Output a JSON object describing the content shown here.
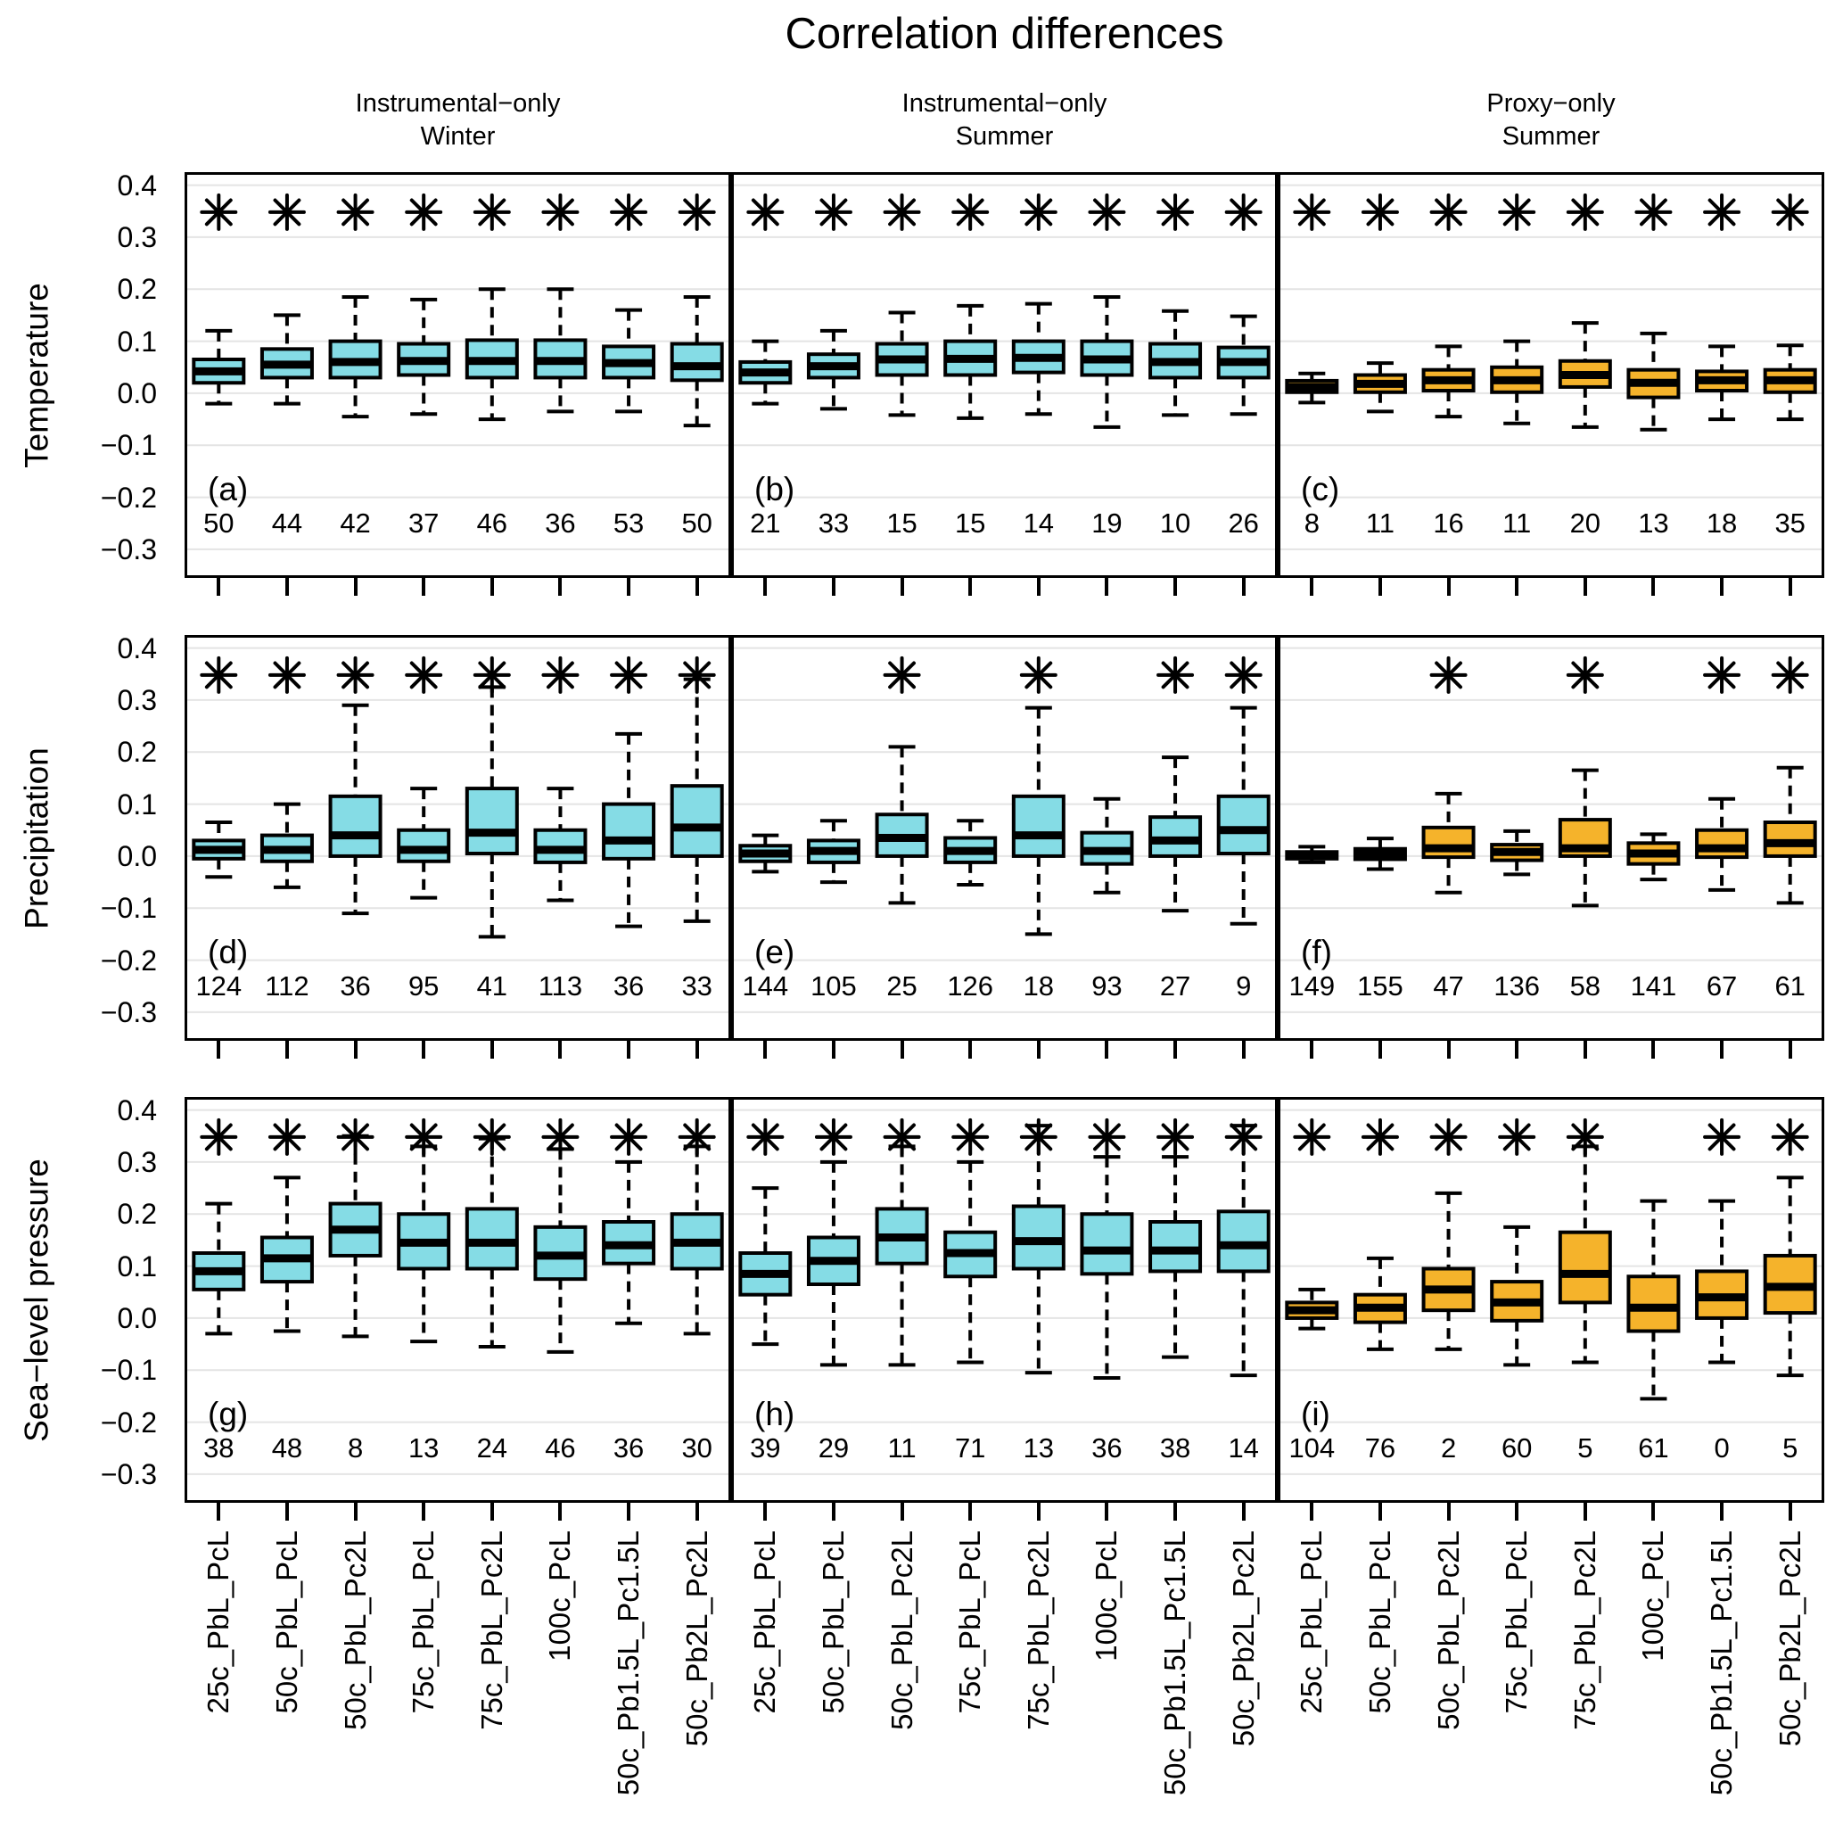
{
  "title": "Correlation differences",
  "column_headers": [
    {
      "line1": "Instrumental−only",
      "line2": "Winter"
    },
    {
      "line1": "Instrumental−only",
      "line2": "Summer"
    },
    {
      "line1": "Proxy−only",
      "line2": "Summer"
    }
  ],
  "row_labels": [
    "Temperature",
    "Precipitation",
    "Sea−level pressure"
  ],
  "x_labels": [
    "25c_PbL_PcL",
    "50c_PbL_PcL",
    "50c_PbL_Pc2L",
    "75c_PbL_PcL",
    "75c_PbL_Pc2L",
    "100c_PcL",
    "50c_Pb1.5L_Pc1.5L",
    "50c_Pb2L_Pc2L"
  ],
  "y_ticks": [
    0.4,
    0.3,
    0.2,
    0.1,
    0.0,
    -0.1,
    -0.2,
    -0.3
  ],
  "colors": {
    "instrumental_fill": "#85DCE5",
    "proxy_fill": "#F5B32B",
    "line": "#000000",
    "gridline": "#E4E4E4",
    "background": "#FFFFFF"
  },
  "chart_data": {
    "type": "boxplot-grid",
    "ylim": [
      -0.355,
      0.425
    ],
    "significance_marker": "8-spoke-asterisk at y=0.35",
    "panels": [
      {
        "letter": "(a)",
        "variable": "Temperature",
        "dataset": "Instrumental-only Winter",
        "group": "instrumental",
        "counts": [
          50,
          44,
          42,
          37,
          46,
          36,
          53,
          50
        ],
        "significant": [
          true,
          true,
          true,
          true,
          true,
          true,
          true,
          true
        ],
        "boxes": [
          {
            "low": -0.02,
            "q1": 0.02,
            "med": 0.042,
            "q3": 0.065,
            "high": 0.12
          },
          {
            "low": -0.02,
            "q1": 0.03,
            "med": 0.055,
            "q3": 0.085,
            "high": 0.15
          },
          {
            "low": -0.045,
            "q1": 0.03,
            "med": 0.06,
            "q3": 0.1,
            "high": 0.185
          },
          {
            "low": -0.04,
            "q1": 0.035,
            "med": 0.062,
            "q3": 0.095,
            "high": 0.18
          },
          {
            "low": -0.05,
            "q1": 0.03,
            "med": 0.062,
            "q3": 0.102,
            "high": 0.2
          },
          {
            "low": -0.035,
            "q1": 0.03,
            "med": 0.062,
            "q3": 0.102,
            "high": 0.2
          },
          {
            "low": -0.035,
            "q1": 0.03,
            "med": 0.058,
            "q3": 0.09,
            "high": 0.16
          },
          {
            "low": -0.062,
            "q1": 0.025,
            "med": 0.052,
            "q3": 0.095,
            "high": 0.185
          }
        ]
      },
      {
        "letter": "(b)",
        "variable": "Temperature",
        "dataset": "Instrumental-only Summer",
        "group": "instrumental",
        "counts": [
          21,
          33,
          15,
          15,
          14,
          19,
          10,
          26
        ],
        "significant": [
          true,
          true,
          true,
          true,
          true,
          true,
          true,
          true
        ],
        "boxes": [
          {
            "low": -0.02,
            "q1": 0.02,
            "med": 0.04,
            "q3": 0.06,
            "high": 0.1
          },
          {
            "low": -0.03,
            "q1": 0.03,
            "med": 0.052,
            "q3": 0.075,
            "high": 0.12
          },
          {
            "low": -0.042,
            "q1": 0.035,
            "med": 0.065,
            "q3": 0.095,
            "high": 0.155
          },
          {
            "low": -0.048,
            "q1": 0.035,
            "med": 0.066,
            "q3": 0.1,
            "high": 0.168
          },
          {
            "low": -0.04,
            "q1": 0.04,
            "med": 0.068,
            "q3": 0.1,
            "high": 0.172
          },
          {
            "low": -0.065,
            "q1": 0.035,
            "med": 0.065,
            "q3": 0.1,
            "high": 0.185
          },
          {
            "low": -0.042,
            "q1": 0.03,
            "med": 0.06,
            "q3": 0.095,
            "high": 0.158
          },
          {
            "low": -0.04,
            "q1": 0.03,
            "med": 0.06,
            "q3": 0.088,
            "high": 0.148
          }
        ]
      },
      {
        "letter": "(c)",
        "variable": "Temperature",
        "dataset": "Proxy-only Summer",
        "group": "proxy",
        "counts": [
          8,
          11,
          16,
          11,
          20,
          13,
          18,
          35
        ],
        "significant": [
          true,
          true,
          true,
          true,
          true,
          true,
          true,
          true
        ],
        "boxes": [
          {
            "low": -0.018,
            "q1": 0.002,
            "med": 0.012,
            "q3": 0.024,
            "high": 0.038
          },
          {
            "low": -0.035,
            "q1": 0.002,
            "med": 0.018,
            "q3": 0.035,
            "high": 0.058
          },
          {
            "low": -0.045,
            "q1": 0.005,
            "med": 0.025,
            "q3": 0.045,
            "high": 0.09
          },
          {
            "low": -0.058,
            "q1": 0.002,
            "med": 0.025,
            "q3": 0.05,
            "high": 0.1
          },
          {
            "low": -0.065,
            "q1": 0.012,
            "med": 0.035,
            "q3": 0.062,
            "high": 0.135
          },
          {
            "low": -0.07,
            "q1": -0.008,
            "med": 0.02,
            "q3": 0.045,
            "high": 0.115
          },
          {
            "low": -0.05,
            "q1": 0.005,
            "med": 0.025,
            "q3": 0.042,
            "high": 0.09
          },
          {
            "low": -0.05,
            "q1": 0.002,
            "med": 0.025,
            "q3": 0.045,
            "high": 0.092
          }
        ]
      },
      {
        "letter": "(d)",
        "variable": "Precipitation",
        "dataset": "Instrumental-only Winter",
        "group": "instrumental",
        "counts": [
          124,
          112,
          36,
          95,
          41,
          113,
          36,
          33
        ],
        "significant": [
          true,
          true,
          true,
          true,
          true,
          true,
          true,
          true
        ],
        "boxes": [
          {
            "low": -0.04,
            "q1": -0.005,
            "med": 0.012,
            "q3": 0.03,
            "high": 0.065
          },
          {
            "low": -0.06,
            "q1": -0.01,
            "med": 0.012,
            "q3": 0.04,
            "high": 0.1
          },
          {
            "low": -0.11,
            "q1": 0.0,
            "med": 0.04,
            "q3": 0.115,
            "high": 0.29
          },
          {
            "low": -0.08,
            "q1": -0.01,
            "med": 0.012,
            "q3": 0.05,
            "high": 0.13
          },
          {
            "low": -0.155,
            "q1": 0.005,
            "med": 0.045,
            "q3": 0.13,
            "high": 0.325
          },
          {
            "low": -0.085,
            "q1": -0.012,
            "med": 0.012,
            "q3": 0.05,
            "high": 0.13
          },
          {
            "low": -0.135,
            "q1": -0.005,
            "med": 0.03,
            "q3": 0.1,
            "high": 0.235
          },
          {
            "low": -0.125,
            "q1": 0.0,
            "med": 0.055,
            "q3": 0.135,
            "high": 0.34
          }
        ]
      },
      {
        "letter": "(e)",
        "variable": "Precipitation",
        "dataset": "Instrumental-only Summer",
        "group": "instrumental",
        "counts": [
          144,
          105,
          25,
          126,
          18,
          93,
          27,
          9
        ],
        "significant": [
          false,
          false,
          true,
          false,
          true,
          false,
          true,
          true
        ],
        "boxes": [
          {
            "low": -0.03,
            "q1": -0.01,
            "med": 0.005,
            "q3": 0.02,
            "high": 0.04
          },
          {
            "low": -0.05,
            "q1": -0.012,
            "med": 0.01,
            "q3": 0.03,
            "high": 0.068
          },
          {
            "low": -0.09,
            "q1": 0.0,
            "med": 0.035,
            "q3": 0.08,
            "high": 0.21
          },
          {
            "low": -0.055,
            "q1": -0.012,
            "med": 0.01,
            "q3": 0.035,
            "high": 0.068
          },
          {
            "low": -0.15,
            "q1": 0.0,
            "med": 0.04,
            "q3": 0.115,
            "high": 0.285
          },
          {
            "low": -0.07,
            "q1": -0.015,
            "med": 0.01,
            "q3": 0.045,
            "high": 0.11
          },
          {
            "low": -0.105,
            "q1": 0.0,
            "med": 0.03,
            "q3": 0.075,
            "high": 0.19
          },
          {
            "low": -0.13,
            "q1": 0.005,
            "med": 0.05,
            "q3": 0.115,
            "high": 0.285
          }
        ]
      },
      {
        "letter": "(f)",
        "variable": "Precipitation",
        "dataset": "Proxy-only Summer",
        "group": "proxy",
        "counts": [
          149,
          155,
          47,
          136,
          58,
          141,
          67,
          61
        ],
        "significant": [
          false,
          false,
          true,
          false,
          true,
          false,
          true,
          true
        ],
        "boxes": [
          {
            "low": -0.012,
            "q1": -0.005,
            "med": 0.0,
            "q3": 0.008,
            "high": 0.018
          },
          {
            "low": -0.025,
            "q1": -0.006,
            "med": 0.004,
            "q3": 0.014,
            "high": 0.034
          },
          {
            "low": -0.07,
            "q1": -0.002,
            "med": 0.015,
            "q3": 0.055,
            "high": 0.12
          },
          {
            "low": -0.035,
            "q1": -0.008,
            "med": 0.008,
            "q3": 0.022,
            "high": 0.048
          },
          {
            "low": -0.095,
            "q1": 0.0,
            "med": 0.015,
            "q3": 0.07,
            "high": 0.165
          },
          {
            "low": -0.045,
            "q1": -0.015,
            "med": 0.005,
            "q3": 0.025,
            "high": 0.042
          },
          {
            "low": -0.065,
            "q1": -0.002,
            "med": 0.015,
            "q3": 0.05,
            "high": 0.11
          },
          {
            "low": -0.09,
            "q1": 0.0,
            "med": 0.025,
            "q3": 0.065,
            "high": 0.17
          }
        ]
      },
      {
        "letter": "(g)",
        "variable": "Sea-level pressure",
        "dataset": "Instrumental-only Winter",
        "group": "instrumental",
        "counts": [
          38,
          48,
          8,
          13,
          24,
          46,
          36,
          30
        ],
        "significant": [
          true,
          true,
          true,
          true,
          true,
          true,
          true,
          true
        ],
        "boxes": [
          {
            "low": -0.03,
            "q1": 0.055,
            "med": 0.09,
            "q3": 0.125,
            "high": 0.22
          },
          {
            "low": -0.025,
            "q1": 0.07,
            "med": 0.115,
            "q3": 0.155,
            "high": 0.27
          },
          {
            "low": -0.035,
            "q1": 0.12,
            "med": 0.17,
            "q3": 0.22,
            "high": 0.35
          },
          {
            "low": -0.045,
            "q1": 0.095,
            "med": 0.145,
            "q3": 0.2,
            "high": 0.33
          },
          {
            "low": -0.055,
            "q1": 0.095,
            "med": 0.145,
            "q3": 0.21,
            "high": 0.345
          },
          {
            "low": -0.065,
            "q1": 0.075,
            "med": 0.12,
            "q3": 0.175,
            "high": 0.325
          },
          {
            "low": -0.01,
            "q1": 0.105,
            "med": 0.14,
            "q3": 0.185,
            "high": 0.3
          },
          {
            "low": -0.03,
            "q1": 0.095,
            "med": 0.145,
            "q3": 0.2,
            "high": 0.33
          }
        ]
      },
      {
        "letter": "(h)",
        "variable": "Sea-level pressure",
        "dataset": "Instrumental-only Summer",
        "group": "instrumental",
        "counts": [
          39,
          29,
          11,
          71,
          13,
          36,
          38,
          14
        ],
        "significant": [
          true,
          true,
          true,
          true,
          true,
          true,
          true,
          true
        ],
        "boxes": [
          {
            "low": -0.05,
            "q1": 0.045,
            "med": 0.085,
            "q3": 0.125,
            "high": 0.25
          },
          {
            "low": -0.09,
            "q1": 0.065,
            "med": 0.11,
            "q3": 0.155,
            "high": 0.3
          },
          {
            "low": -0.09,
            "q1": 0.105,
            "med": 0.155,
            "q3": 0.21,
            "high": 0.33
          },
          {
            "low": -0.085,
            "q1": 0.08,
            "med": 0.125,
            "q3": 0.165,
            "high": 0.3
          },
          {
            "low": -0.105,
            "q1": 0.095,
            "med": 0.148,
            "q3": 0.215,
            "high": 0.37
          },
          {
            "low": -0.115,
            "q1": 0.085,
            "med": 0.13,
            "q3": 0.2,
            "high": 0.31
          },
          {
            "low": -0.075,
            "q1": 0.09,
            "med": 0.13,
            "q3": 0.185,
            "high": 0.31
          },
          {
            "low": -0.11,
            "q1": 0.09,
            "med": 0.14,
            "q3": 0.205,
            "high": 0.37
          }
        ]
      },
      {
        "letter": "(i)",
        "variable": "Sea-level pressure",
        "dataset": "Proxy-only Summer",
        "group": "proxy",
        "counts": [
          104,
          76,
          2,
          60,
          5,
          61,
          0,
          5
        ],
        "significant": [
          true,
          true,
          true,
          true,
          true,
          false,
          true,
          true
        ],
        "boxes": [
          {
            "low": -0.02,
            "q1": 0.0,
            "med": 0.015,
            "q3": 0.03,
            "high": 0.055
          },
          {
            "low": -0.06,
            "q1": -0.008,
            "med": 0.02,
            "q3": 0.045,
            "high": 0.115
          },
          {
            "low": -0.06,
            "q1": 0.015,
            "med": 0.055,
            "q3": 0.095,
            "high": 0.24
          },
          {
            "low": -0.09,
            "q1": -0.005,
            "med": 0.03,
            "q3": 0.07,
            "high": 0.175
          },
          {
            "low": -0.085,
            "q1": 0.03,
            "med": 0.085,
            "q3": 0.165,
            "high": 0.33
          },
          {
            "low": -0.155,
            "q1": -0.025,
            "med": 0.02,
            "q3": 0.08,
            "high": 0.225
          },
          {
            "low": -0.085,
            "q1": 0.0,
            "med": 0.04,
            "q3": 0.09,
            "high": 0.225
          },
          {
            "low": -0.11,
            "q1": 0.01,
            "med": 0.06,
            "q3": 0.12,
            "high": 0.27
          }
        ]
      }
    ]
  }
}
